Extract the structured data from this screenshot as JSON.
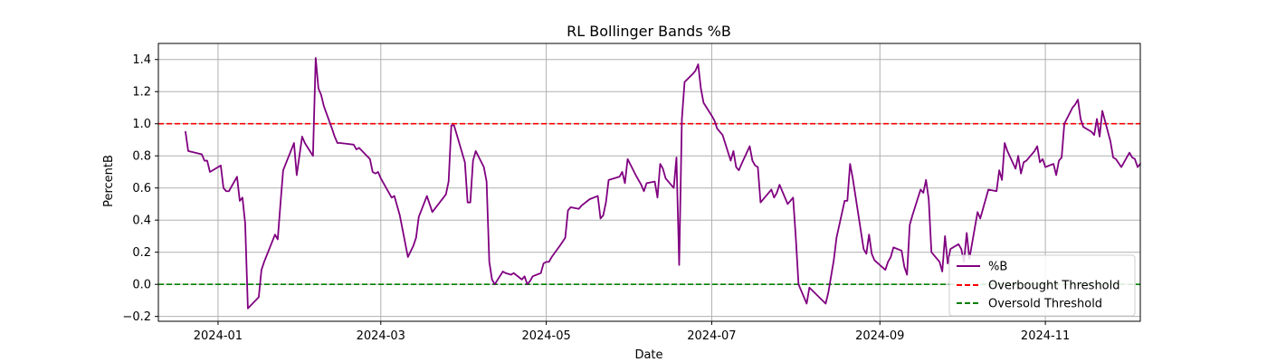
{
  "chart_data": {
    "type": "line",
    "title": "RL Bollinger Bands %B",
    "xlabel": "Date",
    "ylabel": "PercentB",
    "x_range": [
      "2023-12-10",
      "2024-12-06"
    ],
    "ylim": [
      -0.23,
      1.5
    ],
    "grid": true,
    "legend_position": "lower-right",
    "x_ticks": [
      "2024-01",
      "2024-03",
      "2024-05",
      "2024-07",
      "2024-09",
      "2024-11"
    ],
    "y_ticks": [
      -0.2,
      0.0,
      0.2,
      0.4,
      0.6,
      0.8,
      1.0,
      1.2,
      1.4
    ],
    "series": [
      {
        "name": "%B",
        "color": "#800080",
        "points": [
          [
            "2023-12-20",
            0.95
          ],
          [
            "2023-12-21",
            0.83
          ],
          [
            "2023-12-26",
            0.81
          ],
          [
            "2023-12-27",
            0.77
          ],
          [
            "2023-12-28",
            0.77
          ],
          [
            "2023-12-29",
            0.7
          ],
          [
            "2024-01-02",
            0.74
          ],
          [
            "2024-01-03",
            0.6
          ],
          [
            "2024-01-04",
            0.58
          ],
          [
            "2024-01-05",
            0.58
          ],
          [
            "2024-01-08",
            0.67
          ],
          [
            "2024-01-09",
            0.52
          ],
          [
            "2024-01-10",
            0.54
          ],
          [
            "2024-01-11",
            0.38
          ],
          [
            "2024-01-12",
            -0.15
          ],
          [
            "2024-01-16",
            -0.08
          ],
          [
            "2024-01-17",
            0.09
          ],
          [
            "2024-01-18",
            0.14
          ],
          [
            "2024-01-22",
            0.31
          ],
          [
            "2024-01-23",
            0.28
          ],
          [
            "2024-01-24",
            0.5
          ],
          [
            "2024-01-25",
            0.71
          ],
          [
            "2024-01-29",
            0.88
          ],
          [
            "2024-01-30",
            0.68
          ],
          [
            "2024-02-01",
            0.92
          ],
          [
            "2024-02-02",
            0.88
          ],
          [
            "2024-02-05",
            0.8
          ],
          [
            "2024-02-06",
            1.41
          ],
          [
            "2024-02-07",
            1.22
          ],
          [
            "2024-02-08",
            1.18
          ],
          [
            "2024-02-09",
            1.11
          ],
          [
            "2024-02-12",
            0.97
          ],
          [
            "2024-02-13",
            0.92
          ],
          [
            "2024-02-14",
            0.88
          ],
          [
            "2024-02-15",
            0.88
          ],
          [
            "2024-02-20",
            0.87
          ],
          [
            "2024-02-21",
            0.84
          ],
          [
            "2024-02-22",
            0.85
          ],
          [
            "2024-02-26",
            0.78
          ],
          [
            "2024-02-27",
            0.7
          ],
          [
            "2024-02-28",
            0.69
          ],
          [
            "2024-02-29",
            0.7
          ],
          [
            "2024-03-01",
            0.66
          ],
          [
            "2024-03-05",
            0.54
          ],
          [
            "2024-03-06",
            0.55
          ],
          [
            "2024-03-08",
            0.43
          ],
          [
            "2024-03-11",
            0.17
          ],
          [
            "2024-03-13",
            0.24
          ],
          [
            "2024-03-14",
            0.29
          ],
          [
            "2024-03-15",
            0.42
          ],
          [
            "2024-03-18",
            0.55
          ],
          [
            "2024-03-19",
            0.5
          ],
          [
            "2024-03-20",
            0.45
          ],
          [
            "2024-03-25",
            0.56
          ],
          [
            "2024-03-26",
            0.64
          ],
          [
            "2024-03-27",
            0.99
          ],
          [
            "2024-03-28",
            0.99
          ],
          [
            "2024-04-01",
            0.76
          ],
          [
            "2024-04-02",
            0.51
          ],
          [
            "2024-04-03",
            0.51
          ],
          [
            "2024-04-04",
            0.77
          ],
          [
            "2024-04-05",
            0.83
          ],
          [
            "2024-04-08",
            0.73
          ],
          [
            "2024-04-09",
            0.64
          ],
          [
            "2024-04-10",
            0.14
          ],
          [
            "2024-04-11",
            0.03
          ],
          [
            "2024-04-12",
            0.0
          ],
          [
            "2024-04-15",
            0.08
          ],
          [
            "2024-04-16",
            0.07
          ],
          [
            "2024-04-18",
            0.06
          ],
          [
            "2024-04-19",
            0.07
          ],
          [
            "2024-04-22",
            0.03
          ],
          [
            "2024-04-23",
            0.05
          ],
          [
            "2024-04-24",
            0.0
          ],
          [
            "2024-04-25",
            0.02
          ],
          [
            "2024-04-26",
            0.05
          ],
          [
            "2024-04-29",
            0.07
          ],
          [
            "2024-04-30",
            0.13
          ],
          [
            "2024-05-01",
            0.14
          ],
          [
            "2024-05-02",
            0.14
          ],
          [
            "2024-05-03",
            0.17
          ],
          [
            "2024-05-06",
            0.24
          ],
          [
            "2024-05-08",
            0.29
          ],
          [
            "2024-05-09",
            0.46
          ],
          [
            "2024-05-10",
            0.48
          ],
          [
            "2024-05-13",
            0.47
          ],
          [
            "2024-05-14",
            0.49
          ],
          [
            "2024-05-17",
            0.53
          ],
          [
            "2024-05-20",
            0.55
          ],
          [
            "2024-05-21",
            0.41
          ],
          [
            "2024-05-22",
            0.43
          ],
          [
            "2024-05-23",
            0.51
          ],
          [
            "2024-05-24",
            0.65
          ],
          [
            "2024-05-28",
            0.67
          ],
          [
            "2024-05-29",
            0.7
          ],
          [
            "2024-05-30",
            0.63
          ],
          [
            "2024-05-31",
            0.78
          ],
          [
            "2024-06-03",
            0.68
          ],
          [
            "2024-06-05",
            0.62
          ],
          [
            "2024-06-06",
            0.58
          ],
          [
            "2024-06-07",
            0.63
          ],
          [
            "2024-06-10",
            0.64
          ],
          [
            "2024-06-11",
            0.54
          ],
          [
            "2024-06-12",
            0.75
          ],
          [
            "2024-06-13",
            0.72
          ],
          [
            "2024-06-14",
            0.66
          ],
          [
            "2024-06-17",
            0.6
          ],
          [
            "2024-06-18",
            0.79
          ],
          [
            "2024-06-19",
            0.12
          ],
          [
            "2024-06-20",
            1.03
          ],
          [
            "2024-06-21",
            1.26
          ],
          [
            "2024-06-24",
            1.31
          ],
          [
            "2024-06-25",
            1.33
          ],
          [
            "2024-06-26",
            1.37
          ],
          [
            "2024-06-27",
            1.22
          ],
          [
            "2024-06-28",
            1.13
          ],
          [
            "2024-07-01",
            1.05
          ],
          [
            "2024-07-02",
            1.02
          ],
          [
            "2024-07-03",
            0.97
          ],
          [
            "2024-07-05",
            0.93
          ],
          [
            "2024-07-08",
            0.77
          ],
          [
            "2024-07-09",
            0.83
          ],
          [
            "2024-07-10",
            0.73
          ],
          [
            "2024-07-11",
            0.71
          ],
          [
            "2024-07-12",
            0.75
          ],
          [
            "2024-07-15",
            0.86
          ],
          [
            "2024-07-16",
            0.77
          ],
          [
            "2024-07-17",
            0.74
          ],
          [
            "2024-07-18",
            0.73
          ],
          [
            "2024-07-19",
            0.51
          ],
          [
            "2024-07-22",
            0.57
          ],
          [
            "2024-07-23",
            0.59
          ],
          [
            "2024-07-24",
            0.54
          ],
          [
            "2024-07-25",
            0.57
          ],
          [
            "2024-07-26",
            0.62
          ],
          [
            "2024-07-29",
            0.5
          ],
          [
            "2024-07-30",
            0.52
          ],
          [
            "2024-07-31",
            0.54
          ],
          [
            "2024-08-01",
            0.29
          ],
          [
            "2024-08-02",
            0.0
          ],
          [
            "2024-08-05",
            -0.12
          ],
          [
            "2024-08-06",
            -0.02
          ],
          [
            "2024-08-09",
            -0.07
          ],
          [
            "2024-08-12",
            -0.12
          ],
          [
            "2024-08-13",
            -0.05
          ],
          [
            "2024-08-14",
            0.05
          ],
          [
            "2024-08-15",
            0.15
          ],
          [
            "2024-08-16",
            0.29
          ],
          [
            "2024-08-19",
            0.52
          ],
          [
            "2024-08-20",
            0.52
          ],
          [
            "2024-08-21",
            0.75
          ],
          [
            "2024-08-22",
            0.66
          ],
          [
            "2024-08-23",
            0.55
          ],
          [
            "2024-08-26",
            0.22
          ],
          [
            "2024-08-27",
            0.19
          ],
          [
            "2024-08-28",
            0.31
          ],
          [
            "2024-08-29",
            0.19
          ],
          [
            "2024-08-30",
            0.15
          ],
          [
            "2024-09-03",
            0.09
          ],
          [
            "2024-09-04",
            0.14
          ],
          [
            "2024-09-05",
            0.17
          ],
          [
            "2024-09-06",
            0.23
          ],
          [
            "2024-09-09",
            0.21
          ],
          [
            "2024-09-10",
            0.11
          ],
          [
            "2024-09-11",
            0.06
          ],
          [
            "2024-09-12",
            0.37
          ],
          [
            "2024-09-13",
            0.43
          ],
          [
            "2024-09-16",
            0.59
          ],
          [
            "2024-09-17",
            0.57
          ],
          [
            "2024-09-18",
            0.65
          ],
          [
            "2024-09-19",
            0.53
          ],
          [
            "2024-09-20",
            0.2
          ],
          [
            "2024-09-23",
            0.14
          ],
          [
            "2024-09-24",
            0.08
          ],
          [
            "2024-09-25",
            0.3
          ],
          [
            "2024-09-26",
            0.13
          ],
          [
            "2024-09-27",
            0.22
          ],
          [
            "2024-09-30",
            0.25
          ],
          [
            "2024-10-01",
            0.22
          ],
          [
            "2024-10-02",
            0.14
          ],
          [
            "2024-10-03",
            0.32
          ],
          [
            "2024-10-04",
            0.16
          ],
          [
            "2024-10-07",
            0.45
          ],
          [
            "2024-10-08",
            0.41
          ],
          [
            "2024-10-09",
            0.47
          ],
          [
            "2024-10-11",
            0.59
          ],
          [
            "2024-10-14",
            0.58
          ],
          [
            "2024-10-15",
            0.71
          ],
          [
            "2024-10-16",
            0.65
          ],
          [
            "2024-10-17",
            0.88
          ],
          [
            "2024-10-18",
            0.83
          ],
          [
            "2024-10-21",
            0.72
          ],
          [
            "2024-10-22",
            0.8
          ],
          [
            "2024-10-23",
            0.69
          ],
          [
            "2024-10-24",
            0.76
          ],
          [
            "2024-10-25",
            0.77
          ],
          [
            "2024-10-28",
            0.83
          ],
          [
            "2024-10-29",
            0.86
          ],
          [
            "2024-10-30",
            0.76
          ],
          [
            "2024-10-31",
            0.78
          ],
          [
            "2024-11-01",
            0.73
          ],
          [
            "2024-11-04",
            0.75
          ],
          [
            "2024-11-05",
            0.68
          ],
          [
            "2024-11-06",
            0.77
          ],
          [
            "2024-11-07",
            0.79
          ],
          [
            "2024-11-08",
            1.0
          ],
          [
            "2024-11-11",
            1.1
          ],
          [
            "2024-11-12",
            1.12
          ],
          [
            "2024-11-13",
            1.15
          ],
          [
            "2024-11-14",
            1.03
          ],
          [
            "2024-11-15",
            0.98
          ],
          [
            "2024-11-18",
            0.95
          ],
          [
            "2024-11-19",
            0.93
          ],
          [
            "2024-11-20",
            1.03
          ],
          [
            "2024-11-21",
            0.92
          ],
          [
            "2024-11-22",
            1.08
          ],
          [
            "2024-11-25",
            0.89
          ],
          [
            "2024-11-26",
            0.79
          ],
          [
            "2024-11-27",
            0.78
          ],
          [
            "2024-11-29",
            0.73
          ],
          [
            "2024-12-02",
            0.82
          ],
          [
            "2024-12-03",
            0.79
          ],
          [
            "2024-12-04",
            0.78
          ],
          [
            "2024-12-05",
            0.73
          ],
          [
            "2024-12-06",
            0.75
          ]
        ]
      },
      {
        "name": "Overbought Threshold",
        "color": "#ff0000",
        "style": "dashed",
        "constant": 1.0
      },
      {
        "name": "Oversold Threshold",
        "color": "#008000",
        "style": "dashed",
        "constant": 0.0
      }
    ]
  }
}
